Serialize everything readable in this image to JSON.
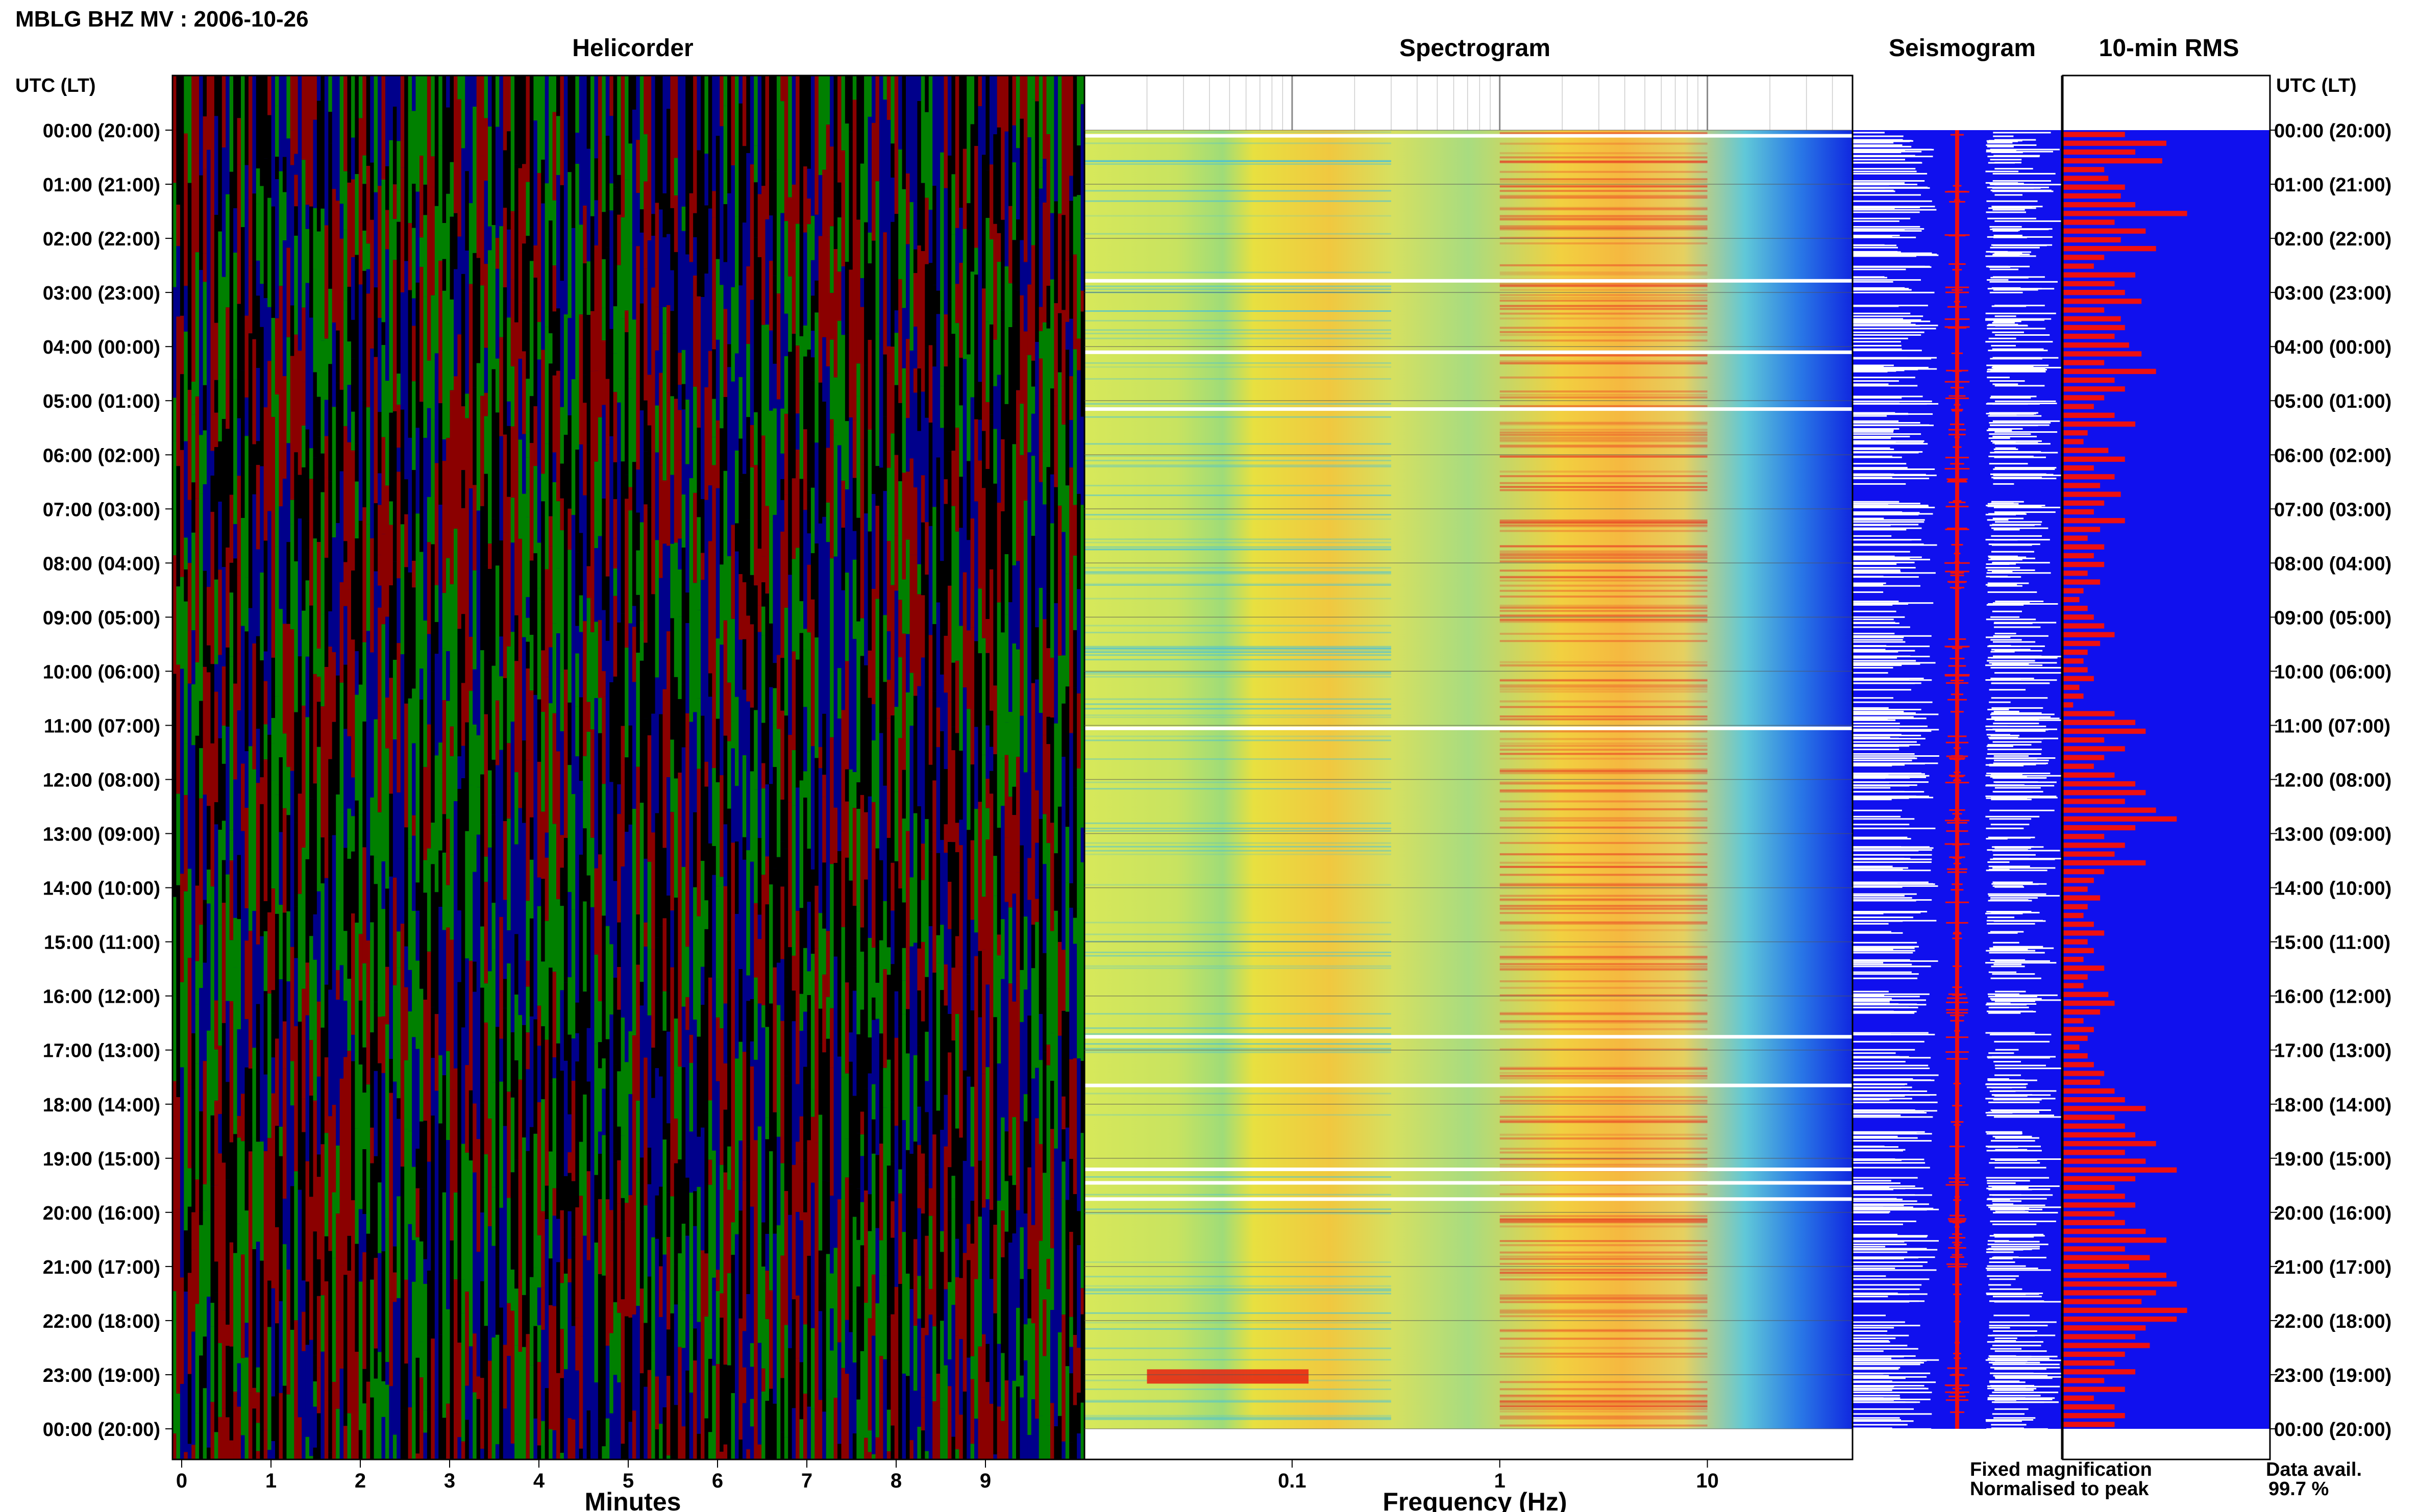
{
  "figure": {
    "title": "MBLG BHZ MV : 2006-10-26",
    "utc_label": "UTC (LT)",
    "panels": {
      "helicorder": "Helicorder",
      "spectrogram": "Spectrogram",
      "seismogram": "Seismogram",
      "rms": "10-min RMS"
    },
    "legend": {
      "fixed": "Fixed magnification",
      "normalised": "Normalised to peak",
      "fixed_color": "#1010ee",
      "normalised_color": "#ee1010"
    },
    "data_avail_label": "Data avail.",
    "data_avail_value": "99.7 %"
  },
  "chart_data": {
    "type": "heatmap",
    "time_rows": [
      "00:00 (20:00)",
      "01:00 (21:00)",
      "02:00 (22:00)",
      "03:00 (23:00)",
      "04:00 (00:00)",
      "05:00 (01:00)",
      "06:00 (02:00)",
      "07:00 (03:00)",
      "08:00 (04:00)",
      "09:00 (05:00)",
      "10:00 (06:00)",
      "11:00 (07:00)",
      "12:00 (08:00)",
      "13:00 (09:00)",
      "14:00 (10:00)",
      "15:00 (11:00)",
      "16:00 (12:00)",
      "17:00 (13:00)",
      "18:00 (14:00)",
      "19:00 (15:00)",
      "20:00 (16:00)",
      "21:00 (17:00)",
      "22:00 (18:00)",
      "23:00 (19:00)",
      "00:00 (20:00)"
    ],
    "helicorder": {
      "xlabel": "Minutes",
      "xticks": [
        "0",
        "1",
        "2",
        "3",
        "4",
        "5",
        "6",
        "7",
        "8",
        "9"
      ],
      "xlim": [
        0,
        10
      ],
      "trace_colors": [
        "#000000",
        "#8b0000",
        "#00008b",
        "#008000"
      ]
    },
    "spectrogram": {
      "xlabel": "Frequency (Hz)",
      "xticks": [
        "0.1",
        "1",
        "10"
      ],
      "xscale": "log",
      "xlim": [
        0.01,
        50
      ],
      "peak_band_hz": [
        1,
        10
      ],
      "gaps_hours": [
        0.1,
        2.78,
        4.1,
        5.15,
        11.05,
        16.75,
        17.65,
        19.2,
        19.45,
        19.75
      ]
    },
    "seismogram": {
      "fixed_color": "#ffffff",
      "normalised_color": "#ee1010",
      "background": "#1010ee"
    },
    "rms": {
      "background": "#1010ee",
      "bar_color": "#ee1010",
      "bars": [
        0.3,
        0.5,
        0.35,
        0.48,
        0.2,
        0.22,
        0.3,
        0.28,
        0.35,
        0.6,
        0.25,
        0.4,
        0.28,
        0.45,
        0.2,
        0.15,
        0.35,
        0.25,
        0.3,
        0.38,
        0.2,
        0.28,
        0.3,
        0.25,
        0.32,
        0.38,
        0.2,
        0.45,
        0.25,
        0.3,
        0.2,
        0.15,
        0.25,
        0.35,
        0.12,
        0.1,
        0.22,
        0.3,
        0.15,
        0.25,
        0.18,
        0.28,
        0.2,
        0.15,
        0.3,
        0.18,
        0.12,
        0.2,
        0.15,
        0.2,
        0.12,
        0.18,
        0.1,
        0.08,
        0.12,
        0.15,
        0.2,
        0.25,
        0.18,
        0.12,
        0.1,
        0.12,
        0.15,
        0.08,
        0.1,
        0.05,
        0.25,
        0.35,
        0.4,
        0.2,
        0.3,
        0.2,
        0.15,
        0.25,
        0.35,
        0.4,
        0.3,
        0.45,
        0.55,
        0.35,
        0.2,
        0.3,
        0.25,
        0.4,
        0.2,
        0.15,
        0.12,
        0.18,
        0.12,
        0.1,
        0.15,
        0.2,
        0.12,
        0.15,
        0.1,
        0.2,
        0.12,
        0.1,
        0.22,
        0.25,
        0.18,
        0.1,
        0.15,
        0.12,
        0.08,
        0.12,
        0.15,
        0.2,
        0.18,
        0.25,
        0.3,
        0.4,
        0.25,
        0.3,
        0.35,
        0.45,
        0.3,
        0.4,
        0.55,
        0.35,
        0.25,
        0.3,
        0.35,
        0.25,
        0.3,
        0.4,
        0.5,
        0.3,
        0.42,
        0.32,
        0.5,
        0.55,
        0.45,
        0.38,
        0.6,
        0.55,
        0.4,
        0.35,
        0.42,
        0.3,
        0.25,
        0.35,
        0.2,
        0.3,
        0.15,
        0.25,
        0.3,
        0.25
      ]
    }
  }
}
